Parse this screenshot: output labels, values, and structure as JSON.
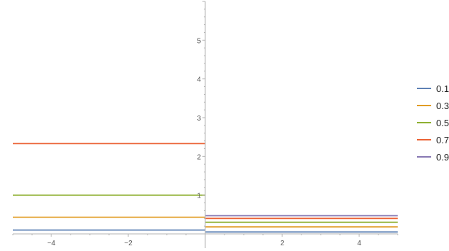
{
  "chart_data": {
    "type": "line",
    "title": "",
    "xlabel": "",
    "ylabel": "",
    "xlim": [
      -5,
      5
    ],
    "ylim": [
      0,
      6
    ],
    "grid": false,
    "legend_position": "right",
    "x_ticks": [
      -4,
      -2,
      2,
      4
    ],
    "x_tick_labels": [
      "−4",
      "−2",
      "2",
      "4"
    ],
    "y_ticks": [
      1,
      2,
      3,
      4,
      5
    ],
    "y_tick_labels": [
      "1",
      "2",
      "3",
      "4",
      "5"
    ],
    "series": [
      {
        "name": "0.1",
        "color": "#5E81B5",
        "segments": [
          {
            "x": [
              -5,
              0
            ],
            "y": [
              0.1,
              0.1
            ]
          },
          {
            "x": [
              0,
              5
            ],
            "y": [
              0.05,
              0.05
            ]
          }
        ]
      },
      {
        "name": "0.3",
        "color": "#E19C24",
        "segments": [
          {
            "x": [
              -5,
              0
            ],
            "y": [
              0.43,
              0.43
            ]
          },
          {
            "x": [
              0,
              5
            ],
            "y": [
              0.18,
              0.18
            ]
          }
        ]
      },
      {
        "name": "0.5",
        "color": "#8FB032",
        "segments": [
          {
            "x": [
              -5,
              0
            ],
            "y": [
              1.0,
              1.0
            ]
          },
          {
            "x": [
              0,
              5
            ],
            "y": [
              0.3,
              0.3
            ]
          }
        ]
      },
      {
        "name": "0.7",
        "color": "#EB6235",
        "segments": [
          {
            "x": [
              -5,
              0
            ],
            "y": [
              2.33,
              2.33
            ]
          },
          {
            "x": [
              0,
              5
            ],
            "y": [
              0.4,
              0.4
            ]
          }
        ]
      },
      {
        "name": "0.9",
        "color": "#8778B3",
        "segments": [
          {
            "x": [
              0,
              5
            ],
            "y": [
              0.47,
              0.47
            ]
          }
        ]
      }
    ]
  }
}
